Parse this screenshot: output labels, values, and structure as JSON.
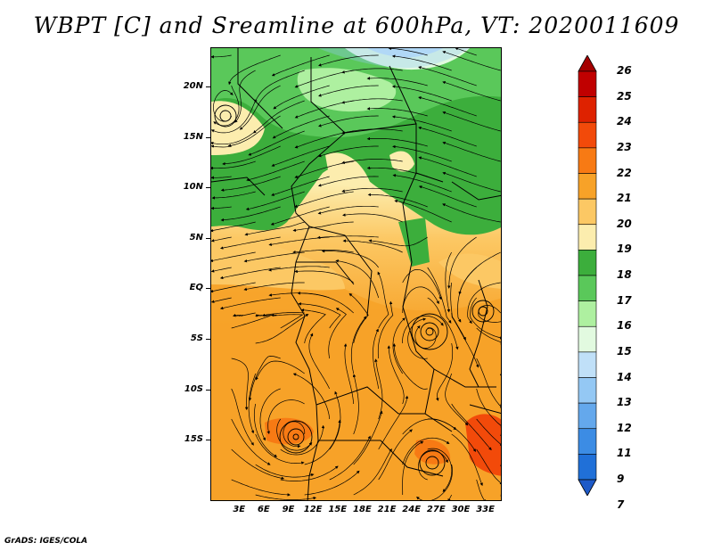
{
  "title": "WBPT [C] and Sreamline at 600hPa, VT: 2020011609",
  "credit": "GrADS: IGES/COLA",
  "map": {
    "lat_range": [
      -21,
      24
    ],
    "lon_range": [
      -0.5,
      35
    ],
    "lat_ticks": [
      "20N",
      "15N",
      "10N",
      "5N",
      "EQ",
      "5S",
      "10S",
      "15S"
    ],
    "lat_tick_values": [
      20,
      15,
      10,
      5,
      0,
      -5,
      -10,
      -15
    ],
    "lon_ticks": [
      "3E",
      "6E",
      "9E",
      "12E",
      "15E",
      "18E",
      "21E",
      "24E",
      "27E",
      "30E",
      "33E"
    ],
    "lon_tick_values": [
      3,
      6,
      9,
      12,
      15,
      18,
      21,
      24,
      27,
      30,
      33
    ],
    "features": [
      "wet-bulb potential temperature shading",
      "streamlines",
      "country borders",
      "coastline"
    ]
  },
  "colorbar": {
    "labels": [
      "26",
      "25",
      "24",
      "23",
      "22",
      "21",
      "20",
      "19",
      "18",
      "17",
      "16",
      "15",
      "14",
      "13",
      "12",
      "11",
      "9",
      "7"
    ],
    "colors": [
      "#a50000",
      "#c00000",
      "#de2200",
      "#f24a0a",
      "#f77a14",
      "#f7a228",
      "#fcc864",
      "#fcedae",
      "#3cae3c",
      "#5ac85a",
      "#aef0a0",
      "#e2fae0",
      "#c0e0f8",
      "#94c8f4",
      "#64a8ec",
      "#3c8ce4",
      "#2070d8",
      "#1e5ac8"
    ]
  },
  "colors": {
    "warm": "#f7a228",
    "mid": "#fcedae",
    "green": "#3cae3c",
    "blue": "#94c8f4"
  }
}
